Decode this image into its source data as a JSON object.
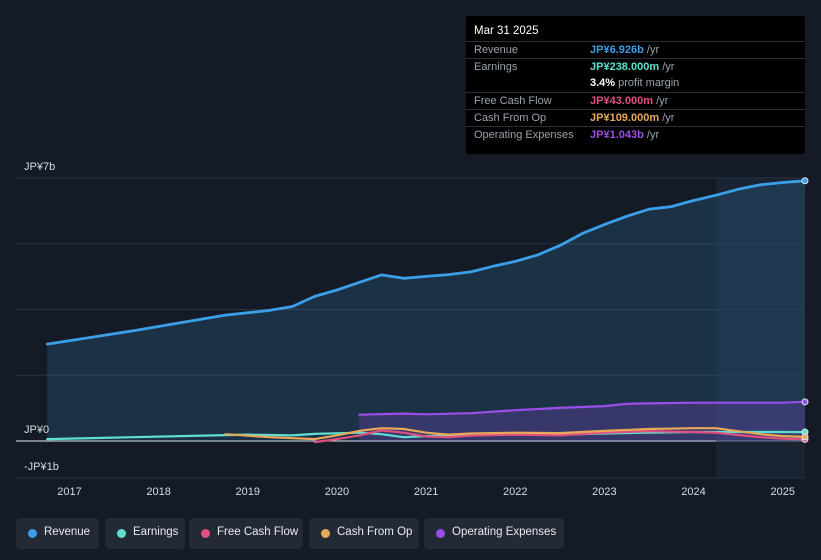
{
  "tooltip": {
    "date": "Mar 31 2025",
    "rows": [
      {
        "label": "Revenue",
        "value": "JP¥6.926b",
        "unit": "/yr",
        "color": "#3b9fe8"
      },
      {
        "label": "Earnings",
        "value": "JP¥238.000m",
        "unit": "/yr",
        "color": "#5fe0cf"
      },
      {
        "label": "",
        "value": "3.4%",
        "unit": "profit margin",
        "color": "#ffffff"
      },
      {
        "label": "Free Cash Flow",
        "value": "JP¥43.000m",
        "unit": "/yr",
        "color": "#e0507f"
      },
      {
        "label": "Cash From Op",
        "value": "JP¥109.000m",
        "unit": "/yr",
        "color": "#e8a85a"
      },
      {
        "label": "Operating Expenses",
        "value": "JP¥1.043b",
        "unit": "/yr",
        "color": "#9b4fe8"
      }
    ]
  },
  "legend": [
    {
      "label": "Revenue",
      "color": "#3b9fe8"
    },
    {
      "label": "Earnings",
      "color": "#5fe0cf"
    },
    {
      "label": "Free Cash Flow",
      "color": "#e0507f"
    },
    {
      "label": "Cash From Op",
      "color": "#e8a85a"
    },
    {
      "label": "Operating Expenses",
      "color": "#9b4fe8"
    }
  ],
  "chart_data": {
    "type": "area",
    "title": "",
    "xlabel": "",
    "ylabel": "",
    "ylim": [
      -1.0,
      7.0
    ],
    "y_tick_labels": [
      {
        "value": 7.0,
        "label": "JP¥7b"
      },
      {
        "value": 0.0,
        "label": "JP¥0"
      },
      {
        "value": -1.0,
        "label": "-JP¥1b"
      }
    ],
    "xlim": [
      2016.4,
      2025.25
    ],
    "x_ticks": [
      2017,
      2018,
      2019,
      2020,
      2021,
      2022,
      2023,
      2024,
      2025
    ],
    "x_tick_labels": [
      "2017",
      "2018",
      "2019",
      "2020",
      "2021",
      "2022",
      "2023",
      "2024",
      "2025"
    ],
    "highlight_from": 2024.25,
    "series": [
      {
        "name": "Revenue",
        "color": "#3b9fe8",
        "fill": true,
        "x": [
          2016.75,
          2017.25,
          2017.75,
          2018.25,
          2018.75,
          2019.25,
          2019.5,
          2019.75,
          2020.0,
          2020.25,
          2020.5,
          2020.75,
          2021.0,
          2021.25,
          2021.5,
          2021.75,
          2022.0,
          2022.25,
          2022.5,
          2022.75,
          2023.0,
          2023.25,
          2023.5,
          2023.75,
          2024.0,
          2024.25,
          2024.5,
          2024.75,
          2025.0,
          2025.25
        ],
        "values": [
          2.58,
          2.76,
          2.95,
          3.15,
          3.35,
          3.48,
          3.58,
          3.85,
          4.02,
          4.22,
          4.42,
          4.33,
          4.38,
          4.43,
          4.5,
          4.65,
          4.78,
          4.95,
          5.2,
          5.52,
          5.76,
          5.98,
          6.17,
          6.24,
          6.4,
          6.54,
          6.7,
          6.82,
          6.88,
          6.926
        ]
      },
      {
        "name": "Earnings",
        "color": "#5fe0cf",
        "fill": false,
        "x": [
          2016.75,
          2017.5,
          2018.25,
          2019.0,
          2019.5,
          2019.75,
          2020.25,
          2020.5,
          2020.75,
          2021.0,
          2021.5,
          2022.0,
          2022.5,
          2023.0,
          2023.5,
          2024.0,
          2024.5,
          2025.0,
          2025.25
        ],
        "values": [
          0.05,
          0.09,
          0.13,
          0.17,
          0.15,
          0.19,
          0.22,
          0.18,
          0.1,
          0.13,
          0.17,
          0.19,
          0.17,
          0.2,
          0.22,
          0.24,
          0.24,
          0.24,
          0.238
        ]
      },
      {
        "name": "Free Cash Flow",
        "color": "#e0507f",
        "fill": false,
        "x": [
          2019.75,
          2020.0,
          2020.25,
          2020.5,
          2020.75,
          2021.0,
          2021.25,
          2021.5,
          2022.0,
          2022.5,
          2023.0,
          2023.5,
          2024.0,
          2024.25,
          2024.5,
          2024.75,
          2025.0,
          2025.25
        ],
        "values": [
          -0.03,
          0.05,
          0.15,
          0.28,
          0.22,
          0.12,
          0.1,
          0.14,
          0.17,
          0.15,
          0.22,
          0.26,
          0.24,
          0.22,
          0.16,
          0.1,
          0.06,
          0.043
        ]
      },
      {
        "name": "Cash From Op",
        "color": "#e8a85a",
        "fill": false,
        "x": [
          2018.75,
          2019.25,
          2019.75,
          2020.0,
          2020.25,
          2020.5,
          2020.75,
          2021.0,
          2021.25,
          2021.5,
          2022.0,
          2022.5,
          2023.0,
          2023.5,
          2024.0,
          2024.25,
          2024.5,
          2024.75,
          2025.0,
          2025.25
        ],
        "values": [
          0.18,
          0.1,
          0.05,
          0.15,
          0.27,
          0.34,
          0.32,
          0.22,
          0.17,
          0.2,
          0.22,
          0.21,
          0.27,
          0.32,
          0.34,
          0.34,
          0.26,
          0.18,
          0.13,
          0.109
        ]
      },
      {
        "name": "Operating Expenses",
        "color": "#9b4fe8",
        "fill": true,
        "x": [
          2020.25,
          2020.75,
          2021.0,
          2021.5,
          2022.0,
          2022.5,
          2023.0,
          2023.25,
          2023.5,
          2024.0,
          2024.5,
          2025.0,
          2025.25
        ],
        "values": [
          0.7,
          0.73,
          0.71,
          0.74,
          0.82,
          0.88,
          0.93,
          0.99,
          1.0,
          1.02,
          1.02,
          1.02,
          1.043
        ]
      }
    ]
  }
}
